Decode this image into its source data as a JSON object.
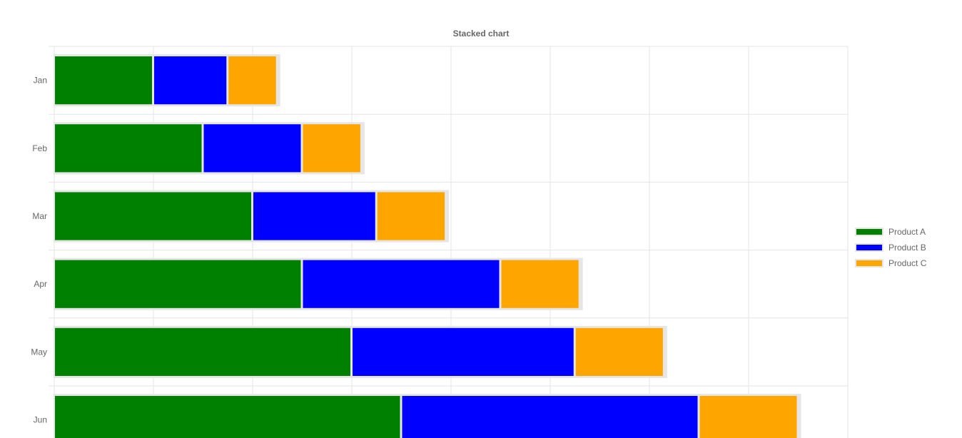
{
  "chart_data": {
    "type": "bar",
    "orientation": "horizontal",
    "stacked": true,
    "title": "Stacked chart",
    "xlabel": "",
    "ylabel": "",
    "categories": [
      "Jan",
      "Feb",
      "Mar",
      "Apr",
      "May",
      "Jun"
    ],
    "series": [
      {
        "name": "Product A",
        "color": "#008000",
        "values": [
          10,
          15,
          20,
          25,
          30,
          35
        ]
      },
      {
        "name": "Product B",
        "color": "#0000ff",
        "values": [
          7.5,
          10,
          12.5,
          20,
          22.5,
          30
        ]
      },
      {
        "name": "Product C",
        "color": "#ffa500",
        "values": [
          5,
          6,
          7,
          8,
          9,
          10
        ]
      }
    ],
    "xlim": [
      0,
      80
    ],
    "grid": true,
    "legend_position": "right"
  }
}
